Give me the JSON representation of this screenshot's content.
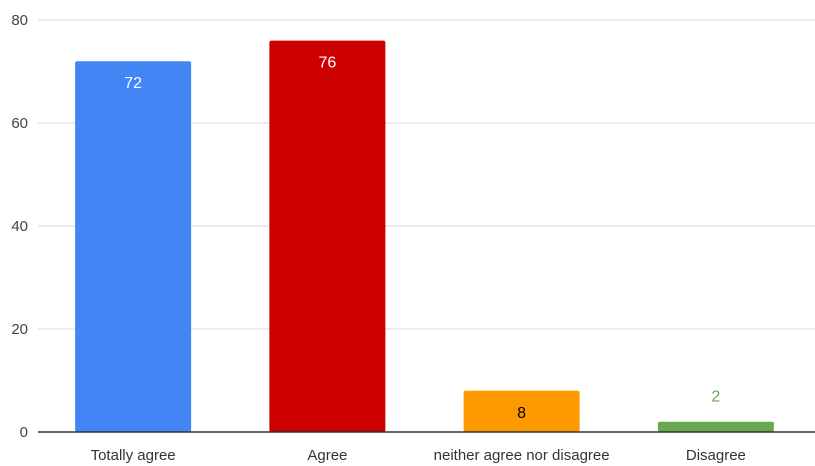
{
  "chart_data": {
    "type": "bar",
    "title": "",
    "xlabel": "",
    "ylabel": "",
    "categories": [
      "Totally agree",
      "Agree",
      "neither agree nor disagree",
      "Disagree"
    ],
    "values": [
      72,
      76,
      8,
      2
    ],
    "data_labels": [
      "72",
      "76",
      "8",
      "2"
    ],
    "colors": [
      "#4285f4",
      "#cc0000",
      "#ff9900",
      "#6aa84f"
    ],
    "label_colors": [
      "#ffffff",
      "#ffffff",
      "#000000",
      "#6aa84f"
    ],
    "ylim": [
      0,
      80
    ],
    "yticks": [
      0,
      20,
      40,
      60,
      80
    ],
    "ytick_labels": [
      "0",
      "20",
      "40",
      "60",
      "80"
    ],
    "grid": true,
    "legend": "none"
  }
}
